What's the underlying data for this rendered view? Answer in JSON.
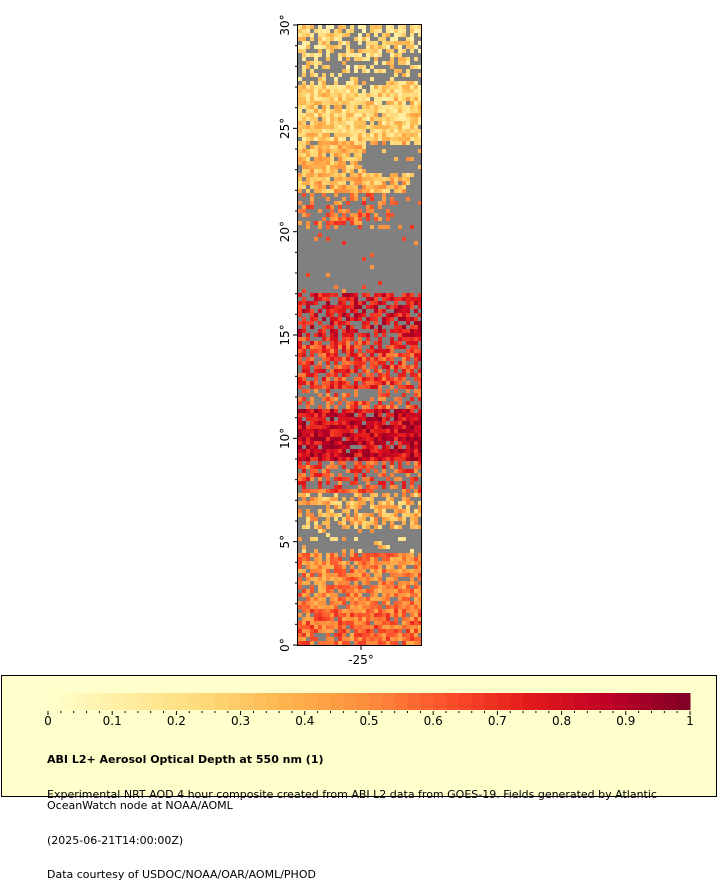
{
  "map": {
    "latitude_labels": [
      "0°",
      "5°",
      "10°",
      "15°",
      "20°",
      "25°",
      "30°"
    ],
    "longitude_labels": [
      "-25°"
    ],
    "land_or_nodata_color": "#808080",
    "frame_color": "#000000"
  },
  "colorbar": {
    "tick_labels": [
      "0",
      "0.1",
      "0.2",
      "0.3",
      "0.4",
      "0.5",
      "0.6",
      "0.7",
      "0.8",
      "0.9",
      "1"
    ],
    "range": [
      0,
      1
    ],
    "palette": [
      "#ffffcc",
      "#ffeda0",
      "#fed976",
      "#feb24c",
      "#fd8d3c",
      "#fc4e2a",
      "#e31a1c",
      "#bd0026",
      "#800026"
    ]
  },
  "caption": {
    "title": "ABI L2+ Aerosol Optical Depth at 550 nm (1)",
    "line1": "Experimental NRT AOD 4 hour composite created from ABI L2 data from GOES-19. Fields generated by Atlantic OceanWatch node at NOAA/AOML",
    "line2": "(2025-06-21T14:00:00Z)",
    "line3": "Data courtesy of USDOC/NOAA/OAR/AOML/PHOD"
  }
}
